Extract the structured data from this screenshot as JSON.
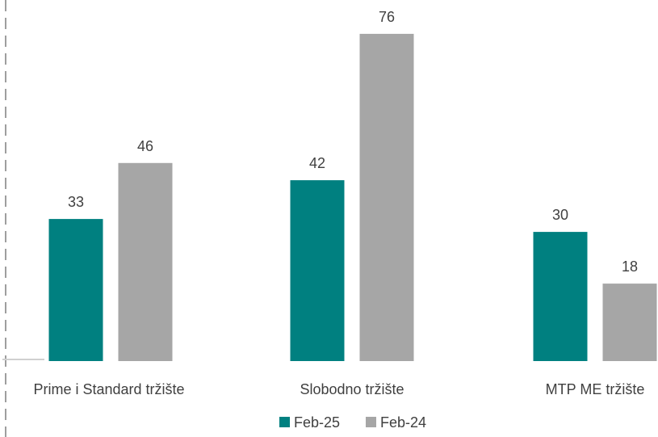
{
  "chart_data": {
    "type": "bar",
    "title": "",
    "xlabel": "",
    "ylabel": "",
    "ylim": [
      0,
      80
    ],
    "grid": false,
    "legend_position": "bottom",
    "categories": [
      "Prime i Standard tržište",
      "Slobodno tržište",
      "MTP ME tržište"
    ],
    "series": [
      {
        "name": "Feb-25",
        "color": "#008080",
        "values": [
          33,
          42,
          30
        ]
      },
      {
        "name": "Feb-24",
        "color": "#A6A6A6",
        "values": [
          46,
          76,
          18
        ]
      }
    ]
  }
}
